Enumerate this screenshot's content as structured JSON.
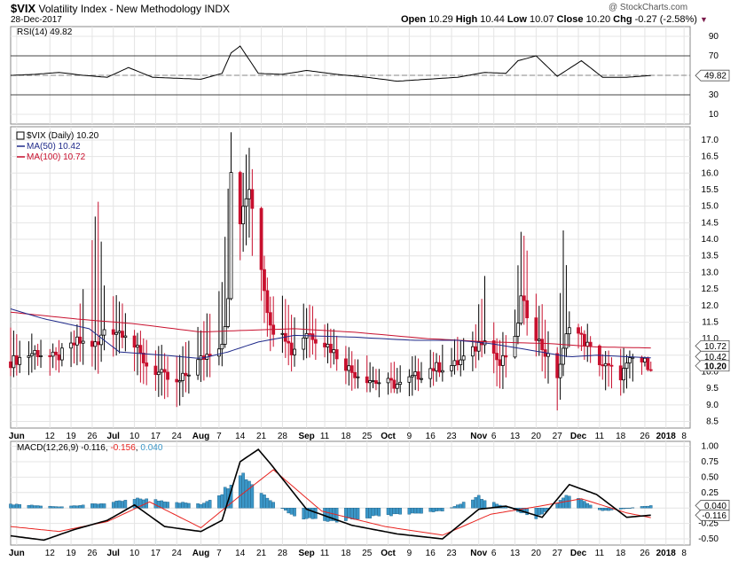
{
  "header": {
    "symbol": "$VIX",
    "name": "Volatility Index - New Methodology",
    "exchange": "INDX",
    "date": "28-Dec-2017",
    "open": "10.29",
    "high": "10.44",
    "low": "10.07",
    "close": "10.20",
    "chg": "-0.27 (-2.58%)",
    "watermark": "@ StockCharts.com"
  },
  "colors": {
    "up": "#000000",
    "down": "#c8102e",
    "ma50": "#1f2a8a",
    "ma100": "#c8102e",
    "rsi": "#000000",
    "macd_line": "#000000",
    "macd_signal": "#e8231f",
    "macd_hist": "#3b97c8",
    "grid": "#e4e4e4",
    "axis": "#999999"
  },
  "chart_data": [
    {
      "type": "line",
      "panel": "rsi",
      "legend": "RSI(14) 49.82",
      "value_label": "49.82",
      "ylim": [
        0,
        100
      ],
      "y_ticks": [
        "90",
        "70",
        "50",
        "30",
        "10"
      ],
      "y_tick_values": [
        90,
        70,
        50,
        30,
        10
      ],
      "ref_lines": [
        70,
        30
      ],
      "center_line": 50,
      "x": [
        "2017-05-30",
        "2017-06-07",
        "2017-06-15",
        "2017-06-23",
        "2017-07-01",
        "2017-07-08",
        "2017-07-16",
        "2017-07-24",
        "2017-08-01",
        "2017-08-08",
        "2017-08-11",
        "2017-08-14",
        "2017-08-20",
        "2017-08-28",
        "2017-09-05",
        "2017-09-15",
        "2017-09-25",
        "2017-10-05",
        "2017-10-15",
        "2017-10-25",
        "2017-11-03",
        "2017-11-10",
        "2017-11-14",
        "2017-11-20",
        "2017-11-27",
        "2017-12-05",
        "2017-12-12",
        "2017-12-20",
        "2017-12-28"
      ],
      "values": [
        50,
        51,
        53,
        50,
        48,
        58,
        48,
        47,
        46,
        52,
        73,
        80,
        52,
        51,
        55,
        51,
        48,
        44,
        46,
        48,
        53,
        52,
        65,
        70,
        49,
        65,
        48,
        48,
        49.82
      ]
    },
    {
      "type": "candlestick",
      "panel": "price",
      "legend": {
        "main": "$VIX (Daily) 10.20",
        "ma50": "MA(50) 10.42",
        "ma100": "MA(100) 10.72"
      },
      "value_labels": {
        "ma100": "10.72",
        "ma50": "10.42",
        "close": "10.20"
      },
      "ylim": [
        8.3,
        17.4
      ],
      "y_ticks": [
        "17.0",
        "16.5",
        "16.0",
        "15.5",
        "15.0",
        "14.5",
        "14.0",
        "13.5",
        "13.0",
        "12.5",
        "12.0",
        "11.5",
        "11.0",
        "10.5",
        "10.0",
        "9.5",
        "9.0",
        "8.5"
      ],
      "y_tick_values": [
        17.0,
        16.5,
        16.0,
        15.5,
        15.0,
        14.5,
        14.0,
        13.5,
        13.0,
        12.5,
        12.0,
        11.5,
        11.0,
        10.5,
        10.0,
        9.5,
        9.0,
        8.5
      ],
      "x_tick_labels": [
        "Jun",
        "12",
        "19",
        "26",
        "Jul",
        "10",
        "17",
        "24",
        "Aug",
        "7",
        "14",
        "21",
        "28",
        "Sep",
        "11",
        "18",
        "25",
        "Oct",
        "9",
        "16",
        "23",
        "Nov",
        "6",
        "13",
        "20",
        "27",
        "Dec",
        "11",
        "18",
        "26",
        "2018",
        "8"
      ],
      "x_tick_dates": [
        "2017-06-01",
        "2017-06-12",
        "2017-06-19",
        "2017-06-26",
        "2017-07-03",
        "2017-07-10",
        "2017-07-17",
        "2017-07-24",
        "2017-08-01",
        "2017-08-07",
        "2017-08-14",
        "2017-08-21",
        "2017-08-28",
        "2017-09-05",
        "2017-09-11",
        "2017-09-18",
        "2017-09-25",
        "2017-10-02",
        "2017-10-09",
        "2017-10-16",
        "2017-10-23",
        "2017-11-01",
        "2017-11-06",
        "2017-11-13",
        "2017-11-20",
        "2017-11-27",
        "2017-12-04",
        "2017-12-11",
        "2017-12-18",
        "2017-12-26",
        "2018-01-02",
        "2018-01-08"
      ],
      "x_range": [
        "2017-05-30",
        "2018-01-10"
      ],
      "anchor_dates": [
        "2017-05-30",
        "2017-06-07",
        "2017-06-14",
        "2017-06-21",
        "2017-06-28",
        "2017-06-30",
        "2017-07-07",
        "2017-07-14",
        "2017-07-24",
        "2017-07-31",
        "2017-08-08",
        "2017-08-10",
        "2017-08-11",
        "2017-08-14",
        "2017-08-17",
        "2017-08-21",
        "2017-08-24",
        "2017-08-28",
        "2017-08-31",
        "2017-09-05",
        "2017-09-12",
        "2017-09-20",
        "2017-09-28",
        "2017-10-06",
        "2017-10-16",
        "2017-10-24",
        "2017-10-30",
        "2017-11-03",
        "2017-11-08",
        "2017-11-13",
        "2017-11-15",
        "2017-11-21",
        "2017-11-27",
        "2017-11-29",
        "2017-12-01",
        "2017-12-06",
        "2017-12-12",
        "2017-12-18",
        "2017-12-22",
        "2017-12-28"
      ],
      "anchor_closes": [
        10.3,
        10.6,
        10.4,
        10.9,
        10.8,
        11.3,
        11.2,
        10.2,
        9.6,
        10.3,
        10.9,
        12.1,
        16.0,
        14.5,
        15.6,
        13.2,
        11.3,
        11.3,
        10.6,
        11.2,
        10.8,
        10.0,
        9.7,
        9.6,
        10.1,
        10.2,
        10.6,
        11.1,
        10.2,
        10.9,
        12.2,
        10.9,
        9.9,
        10.6,
        11.5,
        10.9,
        10.2,
        9.9,
        10.4,
        10.2
      ],
      "anchor_highs": [
        11.4,
        11.2,
        11.0,
        11.6,
        15.2,
        13.0,
        12.0,
        11.2,
        10.6,
        11.4,
        12.8,
        15.6,
        17.3,
        16.1,
        16.8,
        14.2,
        12.4,
        12.5,
        11.8,
        12.2,
        11.5,
        10.8,
        10.4,
        10.3,
        10.8,
        11.0,
        11.4,
        13.0,
        11.0,
        12.0,
        14.6,
        12.3,
        10.8,
        14.6,
        12.0,
        11.6,
        10.9,
        10.7,
        10.9,
        10.44
      ],
      "anchor_lows": [
        9.7,
        9.9,
        9.8,
        10.1,
        9.9,
        10.5,
        10.4,
        9.3,
        8.8,
        9.6,
        10.0,
        11.2,
        13.8,
        13.3,
        14.0,
        11.9,
        10.6,
        10.5,
        9.9,
        10.4,
        10.2,
        9.4,
        9.2,
        9.1,
        9.5,
        9.7,
        10.0,
        10.4,
        9.2,
        10.2,
        11.4,
        10.2,
        8.6,
        9.7,
        10.7,
        10.3,
        9.5,
        9.0,
        9.7,
        10.07
      ],
      "ma50_dates": [
        "2017-05-30",
        "2017-06-10",
        "2017-06-25",
        "2017-07-05",
        "2017-07-20",
        "2017-08-01",
        "2017-08-10",
        "2017-08-20",
        "2017-09-01",
        "2017-09-20",
        "2017-10-10",
        "2017-10-25",
        "2017-11-05",
        "2017-11-15",
        "2017-12-01",
        "2017-12-10",
        "2017-12-28"
      ],
      "ma50": [
        11.9,
        11.6,
        11.3,
        10.6,
        10.5,
        10.4,
        10.6,
        10.9,
        11.1,
        11.05,
        10.95,
        10.95,
        10.85,
        10.7,
        10.45,
        10.5,
        10.42
      ],
      "ma100_dates": [
        "2017-05-30",
        "2017-06-20",
        "2017-07-10",
        "2017-08-01",
        "2017-08-15",
        "2017-09-01",
        "2017-09-20",
        "2017-10-15",
        "2017-11-05",
        "2017-11-25",
        "2017-12-10",
        "2017-12-28"
      ],
      "ma100": [
        11.8,
        11.6,
        11.45,
        11.2,
        11.25,
        11.3,
        11.2,
        11.0,
        10.9,
        10.85,
        10.75,
        10.72
      ]
    },
    {
      "type": "bar+line",
      "panel": "macd",
      "legend": {
        "prefix": "MACD(12,26,9)",
        "macd": "-0.116",
        "signal": "-0.156",
        "hist": "0.040"
      },
      "value_labels": {
        "hist": "0.040",
        "macd": "-0.116"
      },
      "ylim": [
        -0.6,
        1.08
      ],
      "y_ticks": [
        "1.00",
        "0.75",
        "0.50",
        "0.25",
        "0.00",
        "-0.25",
        "-0.50"
      ],
      "y_tick_values": [
        1.0,
        0.75,
        0.5,
        0.25,
        0.0,
        -0.25,
        -0.5
      ],
      "macd_dates": [
        "2017-05-30",
        "2017-06-10",
        "2017-06-20",
        "2017-07-01",
        "2017-07-10",
        "2017-07-20",
        "2017-08-01",
        "2017-08-08",
        "2017-08-14",
        "2017-08-20",
        "2017-08-24",
        "2017-09-05",
        "2017-09-20",
        "2017-10-05",
        "2017-10-20",
        "2017-11-01",
        "2017-11-10",
        "2017-11-22",
        "2017-12-01",
        "2017-12-10",
        "2017-12-20",
        "2017-12-28"
      ],
      "macd": [
        -0.45,
        -0.52,
        -0.35,
        -0.2,
        0.05,
        -0.3,
        -0.38,
        -0.2,
        0.75,
        0.95,
        0.72,
        -0.02,
        -0.28,
        -0.42,
        -0.5,
        -0.02,
        0.03,
        -0.15,
        0.38,
        0.22,
        -0.15,
        -0.116
      ],
      "signal_dates": [
        "2017-05-30",
        "2017-06-15",
        "2017-07-01",
        "2017-07-15",
        "2017-08-01",
        "2017-08-14",
        "2017-08-25",
        "2017-09-10",
        "2017-10-01",
        "2017-10-20",
        "2017-11-05",
        "2017-11-20",
        "2017-12-05",
        "2017-12-20",
        "2017-12-28"
      ],
      "signal": [
        -0.3,
        -0.38,
        -0.22,
        0.1,
        -0.32,
        0.2,
        0.62,
        -0.05,
        -0.3,
        -0.44,
        -0.1,
        0.02,
        0.15,
        -0.08,
        -0.156
      ],
      "hist_dates": [
        "2017-05-30",
        "2017-06-15",
        "2017-07-01",
        "2017-07-12",
        "2017-08-01",
        "2017-08-08",
        "2017-08-14",
        "2017-08-21",
        "2017-09-01",
        "2017-09-12",
        "2017-10-01",
        "2017-10-20",
        "2017-11-01",
        "2017-11-08",
        "2017-11-20",
        "2017-12-01",
        "2017-12-12",
        "2017-12-28"
      ],
      "hist": [
        0.06,
        0.02,
        0.08,
        0.15,
        0.06,
        0.25,
        0.6,
        0.25,
        -0.15,
        -0.22,
        -0.12,
        -0.05,
        0.18,
        0.05,
        -0.16,
        0.22,
        -0.05,
        0.04
      ]
    }
  ]
}
